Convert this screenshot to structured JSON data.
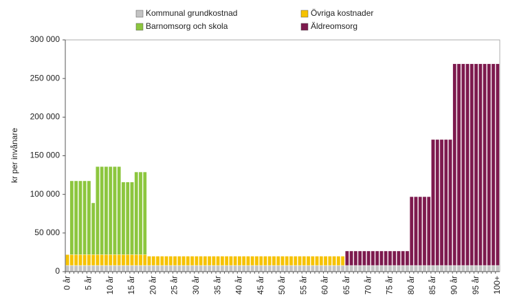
{
  "chart_data": {
    "type": "stacked_bar",
    "y_label": "kr per invånare",
    "categories": [
      "0 år",
      null,
      null,
      null,
      null,
      "5 år",
      null,
      null,
      null,
      null,
      "10 år",
      null,
      null,
      null,
      null,
      "15 år",
      null,
      null,
      null,
      null,
      "20 år",
      null,
      null,
      null,
      null,
      "25 år",
      null,
      null,
      null,
      null,
      "30 år",
      null,
      null,
      null,
      null,
      "35 år",
      null,
      null,
      null,
      null,
      "40 år",
      null,
      null,
      null,
      null,
      "45 år",
      null,
      null,
      null,
      null,
      "50 år",
      null,
      null,
      null,
      null,
      "55 år",
      null,
      null,
      null,
      null,
      "60 år",
      null,
      null,
      null,
      null,
      "65 år",
      null,
      null,
      null,
      null,
      "70 år",
      null,
      null,
      null,
      null,
      "75 år",
      null,
      null,
      null,
      null,
      "80 år",
      null,
      null,
      null,
      null,
      "85 år",
      null,
      null,
      null,
      null,
      "90 år",
      null,
      null,
      null,
      null,
      "95 år",
      null,
      null,
      null,
      null,
      "100+"
    ],
    "series": [
      {
        "name": "Kommunal grundkostnad",
        "color": "#c3c3c3",
        "values": [
          8000,
          8000,
          8000,
          8000,
          8000,
          8000,
          8000,
          8000,
          8000,
          8000,
          8000,
          8000,
          8000,
          8000,
          8000,
          8000,
          8000,
          8000,
          8000,
          8000,
          8000,
          8000,
          8000,
          8000,
          8000,
          8000,
          8000,
          8000,
          8000,
          8000,
          8000,
          8000,
          8000,
          8000,
          8000,
          8000,
          8000,
          8000,
          8000,
          8000,
          8000,
          8000,
          8000,
          8000,
          8000,
          8000,
          8000,
          8000,
          8000,
          8000,
          8000,
          8000,
          8000,
          8000,
          8000,
          8000,
          8000,
          8000,
          8000,
          8000,
          8000,
          8000,
          8000,
          8000,
          8000,
          8000,
          8000,
          8000,
          8000,
          8000,
          8000,
          8000,
          8000,
          8000,
          8000,
          8000,
          8000,
          8000,
          8000,
          8000,
          8000,
          8000,
          8000,
          8000,
          8000,
          8000,
          8000,
          8000,
          8000,
          8000,
          8000,
          8000,
          8000,
          8000,
          8000,
          8000,
          8000,
          8000,
          8000,
          8000,
          8000
        ]
      },
      {
        "name": "Övriga kostnader",
        "color": "#f6c200",
        "values": [
          14000,
          14000,
          14000,
          14000,
          14000,
          14000,
          14000,
          14000,
          14000,
          14000,
          14000,
          14000,
          14000,
          14000,
          14000,
          14000,
          14000,
          14000,
          14000,
          12000,
          12000,
          12000,
          12000,
          12000,
          12000,
          12000,
          12000,
          12000,
          12000,
          12000,
          12000,
          12000,
          12000,
          12000,
          12000,
          12000,
          12000,
          12000,
          12000,
          12000,
          12000,
          12000,
          12000,
          12000,
          12000,
          12000,
          12000,
          12000,
          12000,
          12000,
          12000,
          12000,
          12000,
          12000,
          12000,
          12000,
          12000,
          12000,
          12000,
          12000,
          12000,
          12000,
          12000,
          12000,
          12000,
          0,
          0,
          0,
          0,
          0,
          0,
          0,
          0,
          0,
          0,
          0,
          0,
          0,
          0,
          0,
          0,
          0,
          0,
          0,
          0,
          0,
          0,
          0,
          0,
          0,
          0,
          0,
          0,
          0,
          0,
          0,
          0,
          0,
          0,
          0,
          0
        ]
      },
      {
        "name": "Barnomsorg och skola",
        "color": "#8cc63e",
        "values": [
          0,
          95500,
          95500,
          95500,
          95500,
          95500,
          67000,
          114000,
          114000,
          114000,
          114000,
          114000,
          114000,
          94000,
          94000,
          94000,
          107000,
          107000,
          107000,
          0,
          0,
          0,
          0,
          0,
          0,
          0,
          0,
          0,
          0,
          0,
          0,
          0,
          0,
          0,
          0,
          0,
          0,
          0,
          0,
          0,
          0,
          0,
          0,
          0,
          0,
          0,
          0,
          0,
          0,
          0,
          0,
          0,
          0,
          0,
          0,
          0,
          0,
          0,
          0,
          0,
          0,
          0,
          0,
          0,
          0,
          0,
          0,
          0,
          0,
          0,
          0,
          0,
          0,
          0,
          0,
          0,
          0,
          0,
          0,
          0,
          0,
          0,
          0,
          0,
          0,
          0,
          0,
          0,
          0,
          0,
          0,
          0,
          0,
          0,
          0,
          0,
          0,
          0,
          0,
          0,
          0
        ]
      },
      {
        "name": "Äldreomsorg",
        "color": "#7d1a4e",
        "values": [
          0,
          0,
          0,
          0,
          0,
          0,
          0,
          0,
          0,
          0,
          0,
          0,
          0,
          0,
          0,
          0,
          0,
          0,
          0,
          0,
          0,
          0,
          0,
          0,
          0,
          0,
          0,
          0,
          0,
          0,
          0,
          0,
          0,
          0,
          0,
          0,
          0,
          0,
          0,
          0,
          0,
          0,
          0,
          0,
          0,
          0,
          0,
          0,
          0,
          0,
          0,
          0,
          0,
          0,
          0,
          0,
          0,
          0,
          0,
          0,
          0,
          0,
          0,
          0,
          0,
          18700,
          18700,
          18700,
          18700,
          18700,
          18700,
          18700,
          18700,
          18700,
          18700,
          18700,
          18700,
          18700,
          18700,
          18700,
          89000,
          89000,
          89000,
          89000,
          89000,
          163000,
          163000,
          163000,
          163000,
          163000,
          261000,
          261000,
          261000,
          261000,
          261000,
          261000,
          261000,
          261000,
          261000,
          261000,
          261000
        ]
      }
    ],
    "ylim": [
      0,
      300000
    ],
    "yticks": [
      {
        "value": 0,
        "label": "0"
      },
      {
        "value": 50000,
        "label": "50 000"
      },
      {
        "value": 100000,
        "label": "100 000"
      },
      {
        "value": 150000,
        "label": "150 000"
      },
      {
        "value": 200000,
        "label": "200 000"
      },
      {
        "value": 250000,
        "label": "250 000"
      },
      {
        "value": 300000,
        "label": "300 000"
      }
    ],
    "legend": "top"
  }
}
